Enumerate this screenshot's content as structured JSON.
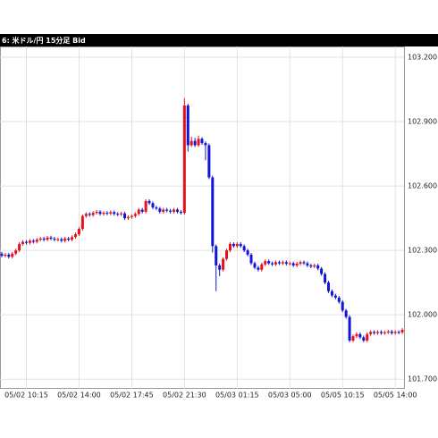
{
  "chart_data": {
    "type": "candlestick",
    "title": "6: 米ドル/円 15分足 Bid",
    "categories": [
      null,
      null,
      null,
      null,
      null,
      null,
      null,
      "05/02 10:15",
      null,
      null,
      null,
      null,
      null,
      null,
      null,
      null,
      null,
      null,
      null,
      null,
      null,
      null,
      "05/02 14:00",
      null,
      null,
      null,
      null,
      null,
      null,
      null,
      null,
      null,
      null,
      null,
      null,
      null,
      null,
      "05/02 17:45",
      null,
      null,
      null,
      null,
      null,
      null,
      null,
      null,
      null,
      null,
      null,
      null,
      null,
      null,
      "05/02 21:30",
      null,
      null,
      null,
      null,
      null,
      null,
      null,
      null,
      null,
      null,
      null,
      null,
      null,
      null,
      "05/03 01:15",
      null,
      null,
      null,
      null,
      null,
      null,
      null,
      null,
      null,
      null,
      null,
      null,
      null,
      null,
      "05/03 05:00",
      null,
      null,
      null,
      null,
      null,
      null,
      null,
      null,
      null,
      null,
      null,
      null,
      null,
      null,
      "05/05 10:15",
      null,
      null,
      null,
      null,
      null,
      null,
      null,
      null,
      null,
      null,
      null,
      null,
      null,
      null,
      "05/05 14:00",
      null,
      null
    ],
    "open": [
      102.285,
      102.275,
      102.28,
      102.27,
      102.285,
      102.3,
      102.33,
      102.34,
      102.335,
      102.345,
      102.34,
      102.35,
      102.355,
      102.35,
      102.36,
      102.355,
      102.35,
      102.352,
      102.345,
      102.355,
      102.35,
      102.362,
      102.375,
      102.4,
      102.46,
      102.47,
      102.465,
      102.475,
      102.48,
      102.47,
      102.475,
      102.472,
      102.478,
      102.47,
      102.468,
      102.472,
      102.45,
      102.455,
      102.46,
      102.47,
      102.49,
      102.48,
      102.53,
      102.52,
      102.5,
      102.495,
      102.48,
      102.49,
      102.485,
      102.48,
      102.49,
      102.48,
      102.475,
      102.975,
      102.79,
      102.81,
      102.79,
      102.82,
      102.8,
      102.79,
      102.64,
      102.32,
      102.23,
      102.21,
      102.26,
      102.3,
      102.33,
      102.32,
      102.33,
      102.32,
      102.3,
      102.28,
      102.24,
      102.22,
      102.21,
      102.235,
      102.25,
      102.24,
      102.235,
      102.245,
      102.24,
      102.245,
      102.238,
      102.24,
      102.23,
      102.238,
      102.245,
      102.24,
      102.23,
      102.225,
      102.23,
      102.215,
      102.19,
      102.15,
      102.11,
      102.09,
      102.08,
      102.06,
      102.02,
      101.99,
      101.88,
      101.9,
      101.91,
      101.895,
      101.88,
      101.91,
      101.92,
      101.915,
      101.92,
      101.915,
      101.918,
      101.922,
      101.915,
      101.92,
      101.918
    ],
    "high": [
      102.293,
      102.288,
      102.288,
      102.293,
      102.308,
      102.338,
      102.348,
      102.348,
      102.353,
      102.353,
      102.358,
      102.363,
      102.363,
      102.368,
      102.368,
      102.363,
      102.36,
      102.36,
      102.363,
      102.363,
      102.37,
      102.383,
      102.408,
      102.468,
      102.478,
      102.478,
      102.483,
      102.488,
      102.488,
      102.483,
      102.483,
      102.486,
      102.486,
      102.478,
      102.48,
      102.48,
      102.463,
      102.468,
      102.478,
      102.498,
      102.498,
      102.538,
      102.538,
      102.528,
      102.508,
      102.503,
      102.498,
      102.498,
      102.493,
      102.498,
      102.498,
      102.488,
      103.01,
      102.983,
      102.83,
      102.825,
      102.835,
      102.828,
      102.808,
      102.798,
      102.648,
      102.328,
      102.238,
      102.268,
      102.308,
      102.338,
      102.338,
      102.338,
      102.338,
      102.328,
      102.308,
      102.288,
      102.248,
      102.228,
      102.243,
      102.258,
      102.258,
      102.248,
      102.253,
      102.253,
      102.253,
      102.253,
      102.248,
      102.248,
      102.246,
      102.253,
      102.253,
      102.248,
      102.238,
      102.238,
      102.238,
      102.223,
      102.198,
      102.158,
      102.118,
      102.098,
      102.088,
      102.068,
      102.028,
      101.998,
      101.908,
      101.918,
      101.918,
      101.903,
      101.918,
      101.928,
      101.928,
      101.928,
      101.928,
      101.926,
      101.93,
      101.93,
      101.928,
      101.928,
      101.938
    ],
    "low": [
      102.267,
      102.267,
      102.262,
      102.262,
      102.277,
      102.292,
      102.322,
      102.327,
      102.327,
      102.332,
      102.332,
      102.342,
      102.342,
      102.342,
      102.347,
      102.342,
      102.342,
      102.337,
      102.337,
      102.342,
      102.342,
      102.354,
      102.367,
      102.392,
      102.452,
      102.457,
      102.457,
      102.467,
      102.462,
      102.462,
      102.464,
      102.464,
      102.462,
      102.46,
      102.46,
      102.442,
      102.442,
      102.447,
      102.452,
      102.462,
      102.472,
      102.472,
      102.512,
      102.492,
      102.487,
      102.472,
      102.472,
      102.477,
      102.472,
      102.472,
      102.472,
      102.467,
      102.467,
      102.76,
      102.782,
      102.782,
      102.782,
      102.792,
      102.72,
      102.632,
      102.29,
      102.11,
      102.18,
      102.202,
      102.252,
      102.292,
      102.312,
      102.312,
      102.312,
      102.292,
      102.272,
      102.232,
      102.212,
      102.202,
      102.202,
      102.227,
      102.232,
      102.227,
      102.227,
      102.232,
      102.232,
      102.23,
      102.23,
      102.222,
      102.222,
      102.23,
      102.232,
      102.222,
      102.217,
      102.217,
      102.207,
      102.182,
      102.142,
      102.102,
      102.082,
      102.072,
      102.052,
      102.012,
      101.982,
      101.872,
      101.872,
      101.892,
      101.887,
      101.872,
      101.872,
      101.902,
      101.907,
      101.907,
      101.907,
      101.907,
      101.91,
      101.907,
      101.907,
      101.91,
      101.91
    ],
    "close": [
      102.275,
      102.28,
      102.27,
      102.285,
      102.3,
      102.33,
      102.34,
      102.335,
      102.345,
      102.34,
      102.35,
      102.355,
      102.35,
      102.36,
      102.355,
      102.35,
      102.352,
      102.345,
      102.355,
      102.35,
      102.362,
      102.375,
      102.4,
      102.46,
      102.47,
      102.465,
      102.475,
      102.48,
      102.47,
      102.475,
      102.472,
      102.478,
      102.47,
      102.468,
      102.472,
      102.45,
      102.455,
      102.46,
      102.47,
      102.49,
      102.48,
      102.53,
      102.52,
      102.5,
      102.495,
      102.48,
      102.49,
      102.485,
      102.48,
      102.49,
      102.48,
      102.475,
      102.975,
      102.79,
      102.81,
      102.79,
      102.82,
      102.8,
      102.79,
      102.64,
      102.32,
      102.23,
      102.21,
      102.26,
      102.3,
      102.33,
      102.32,
      102.33,
      102.32,
      102.3,
      102.28,
      102.24,
      102.22,
      102.21,
      102.235,
      102.25,
      102.24,
      102.235,
      102.245,
      102.24,
      102.245,
      102.238,
      102.24,
      102.23,
      102.238,
      102.245,
      102.24,
      102.23,
      102.225,
      102.23,
      102.215,
      102.19,
      102.15,
      102.11,
      102.09,
      102.08,
      102.06,
      102.02,
      101.99,
      101.88,
      101.9,
      101.91,
      101.895,
      101.88,
      101.91,
      101.92,
      101.915,
      101.92,
      101.915,
      101.918,
      101.922,
      101.915,
      101.92,
      101.918,
      101.93
    ],
    "up_color": "#e8101c",
    "down_color": "#1414d8",
    "ylim": [
      101.655,
      103.25
    ],
    "yticks": [
      {
        "value": 101.7,
        "label": "101.700"
      },
      {
        "value": 102.0,
        "label": "102.000"
      },
      {
        "value": 102.3,
        "label": "102.300"
      },
      {
        "value": 102.6,
        "label": "102.600"
      },
      {
        "value": 102.9,
        "label": "102.900"
      },
      {
        "value": 103.2,
        "label": "103.200"
      }
    ],
    "grid": true
  }
}
